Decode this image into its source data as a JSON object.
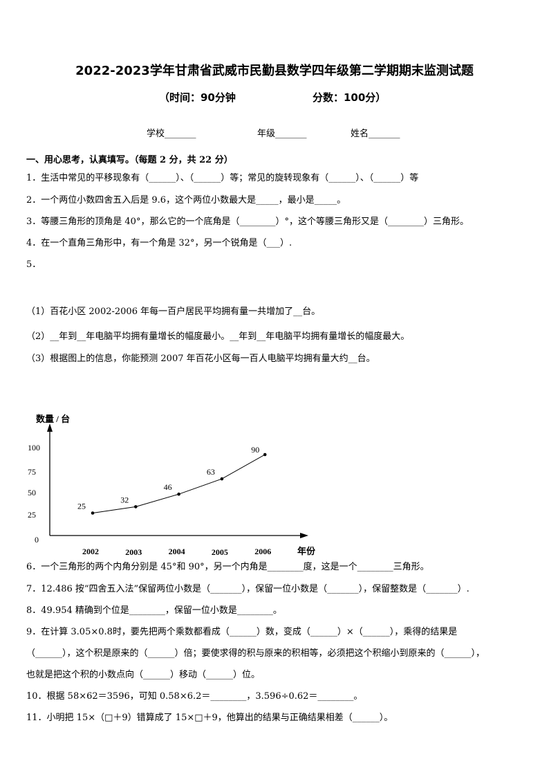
{
  "header": {
    "title": "2022-2023学年甘肃省武威市民勤县数学四年级第二学期期末监测试题",
    "time": "（时间：90分钟",
    "score": "分数：100分）",
    "school": "学校_______",
    "grade": "年级_______",
    "name": "姓名_______"
  },
  "section1": {
    "heading": "一、用心思考，认真填写。（每题 2 分，共 22  分）",
    "questions": [
      "1．生活中常见的平移现象有（______）、（______）等；常见的旋转现象有（______）、（______）等",
      "2．一个两位小数四舍五入后是 9.6，这个两位小数最大是_____，最小是_____。",
      "3．等腰三角形的顶角是 40°，那么它的一个底角是（________）°，这个等腰三角形又是（________）三角形。",
      "4．在一个直角三角形中，有一个角是 32°，另一个锐角是（___）.",
      "5．"
    ],
    "q5_parts": [
      "（1）百花小区 2002-2006 年每一百户居民平均拥有量一共增加了__台。",
      "（2）__年到__年电脑平均拥有量增长的幅度最小。__年到__年电脑平均拥有量增长的幅度最大。",
      "（3）根据图上的信息，你能预测 2007 年百花小区每一百人电脑平均拥有量大约__台。"
    ],
    "questions_after": [
      "6．一个三角形的两个内角分别是 45°和 90°，另一个内角是________度，这是一个________三角形。",
      "7．12.486 按“四舍五入法”保留两位小数是（_______），保留一位小数是（_______），保留整数是（_______）.",
      "8．49.954 精确到个位是________，保留一位小数是________。",
      "9．在计算 3.05×0.8时，要先把两个乘数都看成（______）数，变成（______）×（______），乘得的结果是",
      "（______），这个积是原来的（______）倍；要使求得的积与原来的积相等，必须把这个积缩小到原来的（______），",
      "也就是把这个积的小数点向（______）移动（______）位。",
      "10．根据 58×62＝3596，可知 0.58×6.2＝________，3.596÷0.62＝________。",
      "11．小明把 15×（□＋9）错算成了 15×□＋9，他算出的结果与正确结果相差（______）。"
    ]
  },
  "chart_data": {
    "type": "line",
    "ylabel": "数量 / 台",
    "xlabel": "年份",
    "categories": [
      "2002",
      "2003",
      "2004",
      "2005",
      "2006"
    ],
    "values": [
      25,
      32,
      46,
      63,
      90
    ],
    "data_labels": [
      "25",
      "32",
      "46",
      "63",
      "90"
    ],
    "yticks": [
      "0",
      "25",
      "50",
      "75",
      "100"
    ],
    "ylim": [
      0,
      100
    ],
    "grid": false
  }
}
